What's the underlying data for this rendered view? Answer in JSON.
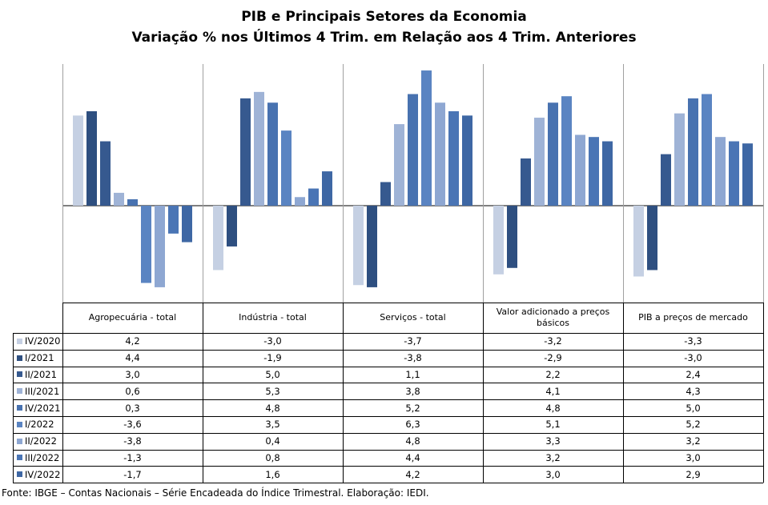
{
  "title": "PIB e Principais  Setores da Economia",
  "subtitle": "Variação  % nos  Últimos 4 Trim.  em Relação aos  4 Trim.  Anteriores",
  "source": "Fonte: IBGE – Contas Nacionais – Série Encadeada do Índice Trimestral. Elaboração: IEDI.",
  "chart_data": {
    "type": "bar",
    "title": "PIB e Principais  Setores da Economia",
    "subtitle": "Variação  % nos  Últimos 4 Trim.  em Relação aos  4 Trim.  Anteriores",
    "categories": [
      "Agropecuária - total",
      "Indústria - total",
      "Serviços - total",
      "Valor adicionado a preços básicos",
      "PIB a preços de mercado"
    ],
    "ylim": [
      -4.2,
      6.6
    ],
    "grid": false,
    "legend": "bottom-table",
    "series": [
      {
        "name": "IV/2020",
        "color": "#c5d0e3",
        "values": [
          "4,2",
          "-3,0",
          "-3,7",
          "-3,2",
          "-3,3"
        ]
      },
      {
        "name": "I/2021",
        "color": "#2e4f80",
        "values": [
          "4,4",
          "-1,9",
          "-3,8",
          "-2,9",
          "-3,0"
        ]
      },
      {
        "name": "II/2021",
        "color": "#36598f",
        "values": [
          "3,0",
          "5,0",
          "1,1",
          "2,2",
          "2,4"
        ]
      },
      {
        "name": "III/2021",
        "color": "#9fb3d6",
        "values": [
          "0,6",
          "5,3",
          "3,8",
          "4,1",
          "4,3"
        ]
      },
      {
        "name": "IV/2021",
        "color": "#4872b0",
        "values": [
          "0,3",
          "4,8",
          "5,2",
          "4,8",
          "5,0"
        ]
      },
      {
        "name": "I/2022",
        "color": "#5a84c2",
        "values": [
          "-3,6",
          "3,5",
          "6,3",
          "5,1",
          "5,2"
        ]
      },
      {
        "name": "II/2022",
        "color": "#8ea7d2",
        "values": [
          "-3,8",
          "0,4",
          "4,8",
          "3,3",
          "3,2"
        ]
      },
      {
        "name": "III/2022",
        "color": "#4a75b5",
        "values": [
          "-1,3",
          "0,8",
          "4,4",
          "3,2",
          "3,0"
        ]
      },
      {
        "name": "IV/2022",
        "color": "#3e67a4",
        "values": [
          "-1,7",
          "1,6",
          "4,2",
          "3,0",
          "2,9"
        ]
      }
    ]
  }
}
